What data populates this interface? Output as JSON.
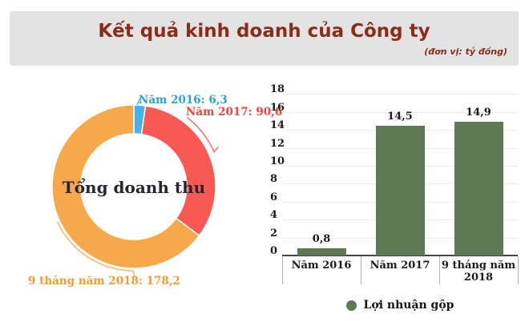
{
  "header": {
    "title": "Kết quả kinh doanh của Công ty",
    "unit_note": "(đơn vị: tỷ đồng)"
  },
  "colors": {
    "header_bg": "#e3e3e3",
    "title_text": "#8e2b18",
    "bar_green": "#5d7a55",
    "gridline": "#ededed"
  },
  "chart_data": [
    {
      "type": "pie",
      "subtype": "donut",
      "center_label": "Tổng doanh thu",
      "start_angle_deg": 0,
      "direction": "clockwise",
      "slices": [
        {
          "label": "Năm 2016",
          "value": 6.3,
          "display": "Năm 2016: 6,3",
          "color": "#47b1ea",
          "label_color": "#2da0e0"
        },
        {
          "label": "Năm 2017",
          "value": 90.6,
          "display": "Năm 2017: 90,6",
          "color": "#f95953",
          "label_color": "#f5423e"
        },
        {
          "label": "9 tháng năm 2018",
          "value": 178.2,
          "display": "9 tháng năm 2018: 178,2",
          "color": "#f7a84b",
          "label_color": "#f59b33"
        }
      ]
    },
    {
      "type": "bar",
      "categories": [
        "Năm 2016",
        "Năm 2017",
        "9 tháng năm 2018"
      ],
      "values": [
        0.8,
        14.5,
        14.9
      ],
      "value_labels": [
        "0,8",
        "14,5",
        "14,9"
      ],
      "ylim": [
        0,
        18
      ],
      "yticks": [
        0,
        2,
        4,
        6,
        8,
        10,
        12,
        14,
        16,
        18
      ],
      "grid": true,
      "bar_color": "#5d7a55",
      "legend": {
        "label": "Lợi nhuận gộp",
        "color": "#5d7a55",
        "position": "bottom"
      }
    }
  ]
}
